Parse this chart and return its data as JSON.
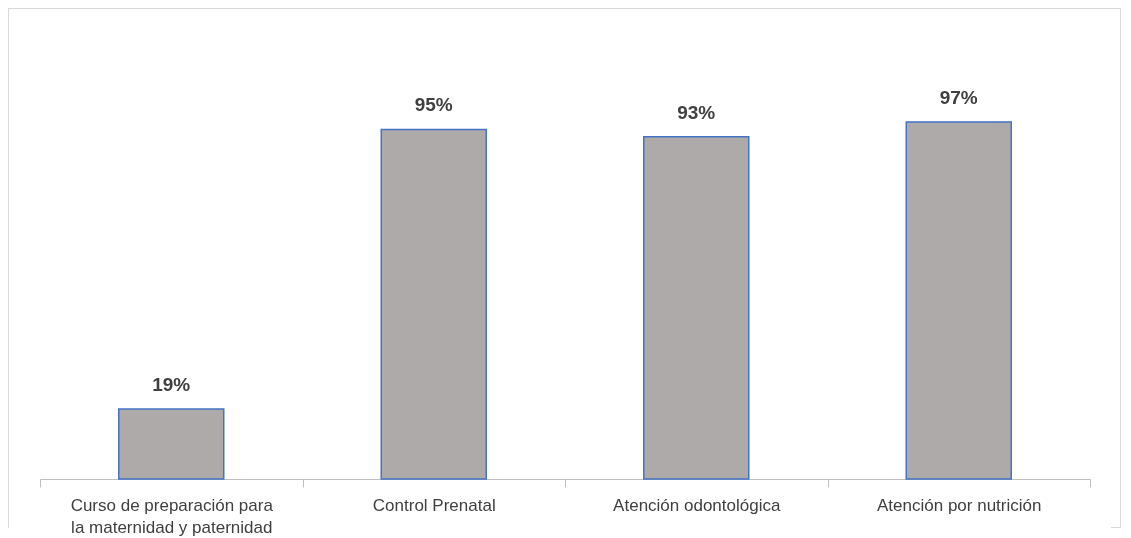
{
  "chart_data": {
    "type": "bar",
    "categories": [
      "Curso de preparación para la maternidad y paternidad",
      "Control Prenatal",
      "Atención odontológica",
      "Atención por nutrición"
    ],
    "values": [
      19,
      95,
      93,
      97
    ],
    "value_labels": [
      "19%",
      "95%",
      "93%",
      "97%"
    ],
    "color": "#aeaaaa"
  }
}
